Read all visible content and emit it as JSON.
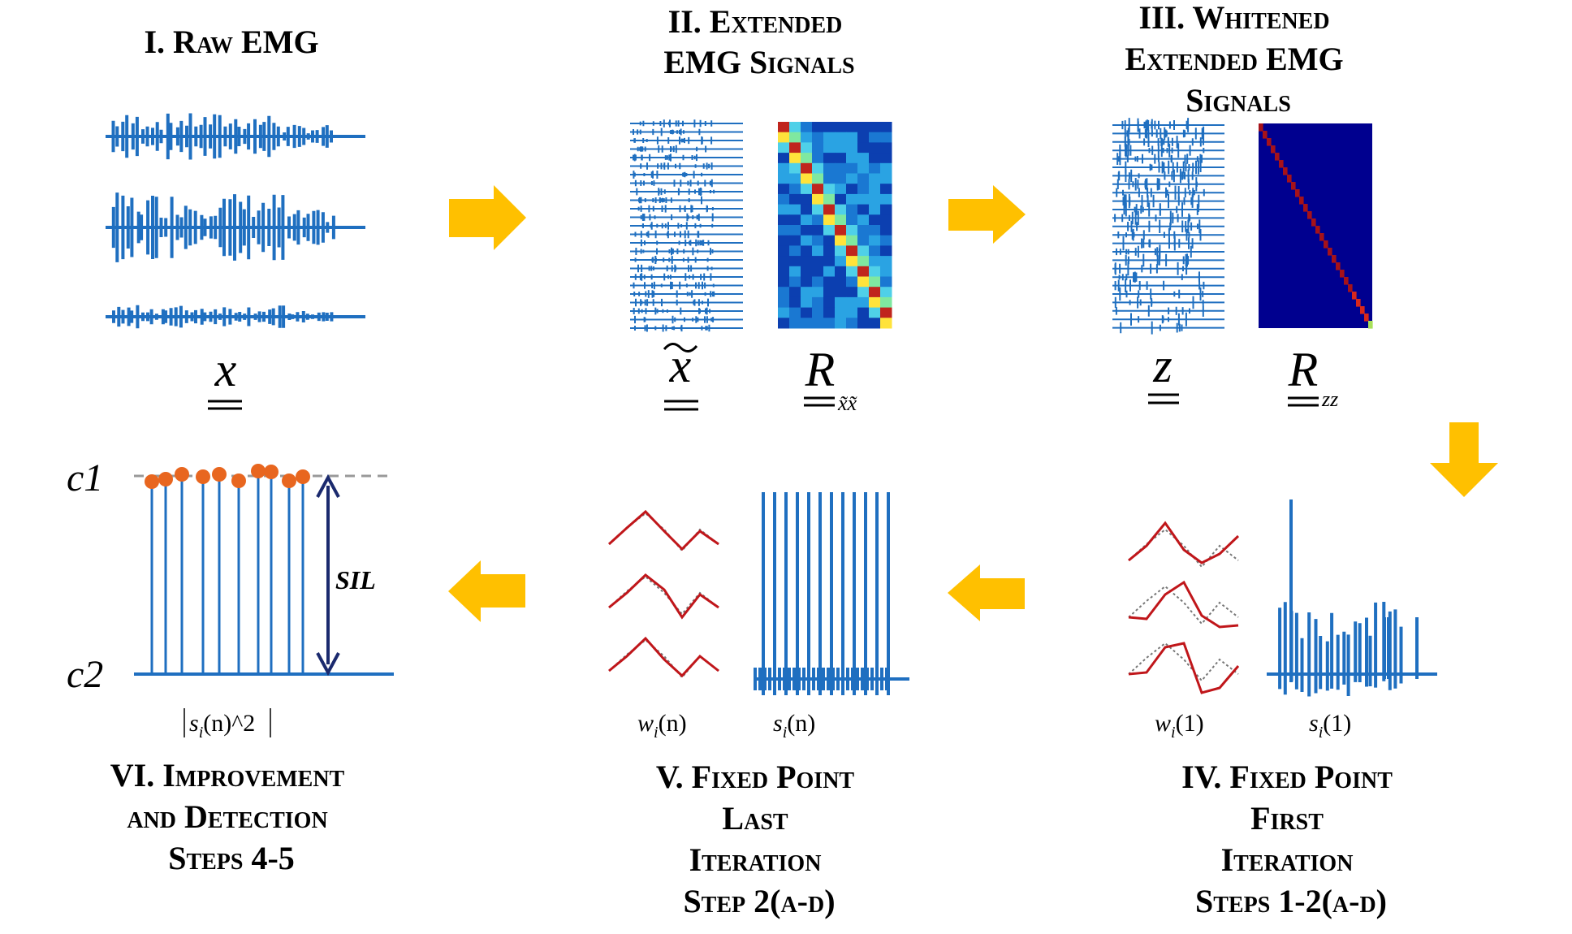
{
  "stages": {
    "s1": [
      "I. Raw EMG"
    ],
    "s2": [
      "II. Extended",
      "EMG Signals"
    ],
    "s3": [
      "III. Whitened",
      "Extended EMG",
      "Signals"
    ],
    "s4": [
      "IV. Fixed Point",
      "First",
      "Iteration",
      "Steps 1-2(a-d)"
    ],
    "s5": [
      "V. Fixed Point",
      "Last",
      "Iteration",
      "Step 2(a-d)"
    ],
    "s6": [
      "VI. Improvement",
      "and Detection",
      "Steps 4-5"
    ]
  },
  "symbols": {
    "x": "x",
    "x_tilde": "x",
    "R": "R",
    "R_sub_xx": "x̃x̃",
    "z": "z",
    "R_sub_zz": "zz"
  },
  "captions": {
    "w1": "w",
    "w1_sub": "i",
    "w1_arg": "(1)",
    "s1": "s",
    "s1_sub": "i",
    "s1_arg": "(1)",
    "wn": "w",
    "wn_sub": "i",
    "wn_arg": "(n)",
    "sn": "s",
    "sn_sub": "i",
    "sn_arg": "(n)",
    "abs_s": "s",
    "abs_sub": "i",
    "abs_arg": "(n)^2"
  },
  "levels": {
    "c1": "c1",
    "c2": "c2",
    "sil": "SIL"
  },
  "colors": {
    "signal": "#1f6fc0",
    "arrow": "#ffc000",
    "spike_dot": "#e8661f",
    "weight_line": "#c0161a",
    "dashed": "#999999",
    "sil_arrow": "#1b2a6e"
  }
}
